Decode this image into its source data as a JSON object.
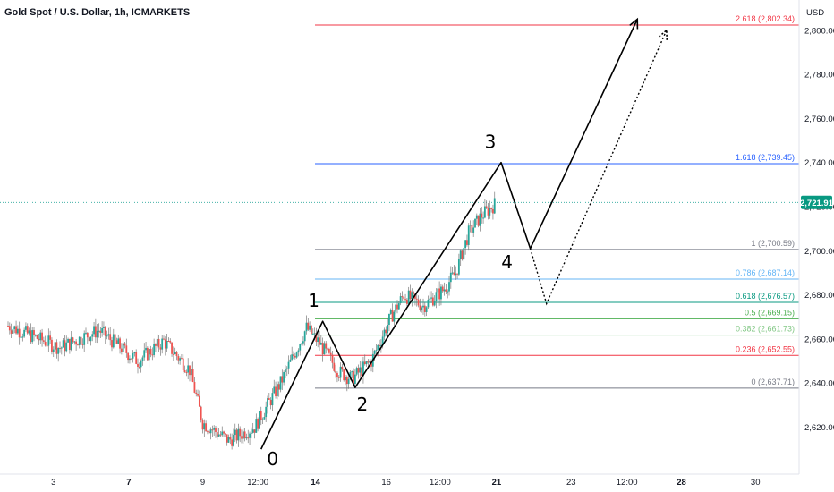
{
  "title": "Gold Spot / U.S. Dollar, 1h, ICMARKETS",
  "currency": "USD",
  "current_price": {
    "label": "2,721.91",
    "value": 2721.91,
    "color": "#089981"
  },
  "colors": {
    "up": "#26a69a",
    "down": "#ef5350",
    "wick": "#7a7a7a"
  },
  "chart_data": {
    "type": "candlestick",
    "title": "Gold Spot / U.S. Dollar, 1h, ICMARKETS",
    "ylabel": "USD",
    "ylim": [
      2606,
      2812
    ],
    "yticks": [
      2620,
      2640,
      2660,
      2680,
      2700,
      2720,
      2740,
      2760,
      2780,
      2800
    ],
    "ytick_labels": [
      "2,620.00",
      "2,640.00",
      "2,660.00",
      "2,680.00",
      "2,700.00",
      "2,720.00",
      "2,740.00",
      "2,760.00",
      "2,780.00",
      "2,800.00"
    ],
    "xlim": [
      0,
      115
    ],
    "xticks": [
      {
        "x": 7,
        "label": "3",
        "bold": false
      },
      {
        "x": 18.6,
        "label": "7",
        "bold": true
      },
      {
        "x": 30,
        "label": "9",
        "bold": false
      },
      {
        "x": 38.5,
        "label": "12:00",
        "bold": false
      },
      {
        "x": 47.4,
        "label": "14",
        "bold": true
      },
      {
        "x": 58.3,
        "label": "16",
        "bold": false
      },
      {
        "x": 66.6,
        "label": "12:00",
        "bold": false
      },
      {
        "x": 75.3,
        "label": "21",
        "bold": true
      },
      {
        "x": 86.8,
        "label": "23",
        "bold": false
      },
      {
        "x": 95.4,
        "label": "12:00",
        "bold": false
      },
      {
        "x": 103.8,
        "label": "28",
        "bold": true
      },
      {
        "x": 115.2,
        "label": "30",
        "bold": false
      }
    ],
    "anchors": [
      {
        "x": 0,
        "price": 2666
      },
      {
        "x": 8,
        "price": 2656
      },
      {
        "x": 14,
        "price": 2664
      },
      {
        "x": 20,
        "price": 2650
      },
      {
        "x": 24,
        "price": 2659
      },
      {
        "x": 28,
        "price": 2646
      },
      {
        "x": 30,
        "price": 2622
      },
      {
        "x": 34,
        "price": 2614
      },
      {
        "x": 38,
        "price": 2620
      },
      {
        "x": 42,
        "price": 2640
      },
      {
        "x": 46,
        "price": 2665
      },
      {
        "x": 48,
        "price": 2658
      },
      {
        "x": 51,
        "price": 2645
      },
      {
        "x": 53,
        "price": 2642
      },
      {
        "x": 56,
        "price": 2650
      },
      {
        "x": 59,
        "price": 2670
      },
      {
        "x": 61,
        "price": 2680
      },
      {
        "x": 64,
        "price": 2675
      },
      {
        "x": 67,
        "price": 2682
      },
      {
        "x": 69,
        "price": 2690
      },
      {
        "x": 71,
        "price": 2708
      },
      {
        "x": 73,
        "price": 2716
      },
      {
        "x": 75,
        "price": 2721
      }
    ],
    "fibonacci": [
      {
        "level": "0",
        "price": 2637.71,
        "label": "0 (2,637.71)",
        "color": "#787b86"
      },
      {
        "level": "0.236",
        "price": 2652.55,
        "label": "0.236 (2,652.55)",
        "color": "#f23645"
      },
      {
        "level": "0.382",
        "price": 2661.73,
        "label": "0.382 (2,661.73)",
        "color": "#81c784"
      },
      {
        "level": "0.5",
        "price": 2669.15,
        "label": "0.5 (2,669.15)",
        "color": "#4caf50"
      },
      {
        "level": "0.618",
        "price": 2676.57,
        "label": "0.618 (2,676.57)",
        "color": "#089981"
      },
      {
        "level": "0.786",
        "price": 2687.14,
        "label": "0.786 (2,687.14)",
        "color": "#64b5f6"
      },
      {
        "level": "1",
        "price": 2700.59,
        "label": "1 (2,700.59)",
        "color": "#787b86"
      },
      {
        "level": "1.618",
        "price": 2739.45,
        "label": "1.618 (2,739.45)",
        "color": "#2962ff"
      },
      {
        "level": "2.618",
        "price": 2802.34,
        "label": "2.618 (2,802.34)",
        "color": "#f23645"
      }
    ],
    "waves": [
      {
        "label": "0",
        "x": 39,
        "price": 2610
      },
      {
        "label": "1",
        "x": 48.5,
        "price": 2668
      },
      {
        "label": "2",
        "x": 53.5,
        "price": 2638
      },
      {
        "label": "3",
        "x": 76,
        "price": 2740
      },
      {
        "label": "4",
        "x": 80.5,
        "price": 2701
      },
      {
        "label": "",
        "x": 97,
        "price": 2805
      }
    ],
    "alt_path": [
      {
        "x": 80.5,
        "price": 2701
      },
      {
        "x": 83,
        "price": 2676
      },
      {
        "x": 101.5,
        "price": 2800
      }
    ]
  }
}
